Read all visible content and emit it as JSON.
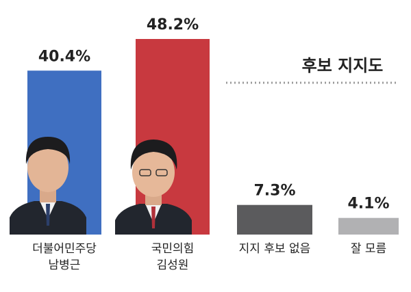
{
  "chart_data": {
    "type": "bar",
    "title": "후보 지지도",
    "categories": [
      [
        "더불어민주당",
        "남병근"
      ],
      [
        "국민의힘",
        "김성원"
      ],
      [
        "지지 후보 없음"
      ],
      [
        "잘 모름"
      ]
    ],
    "values": [
      40.4,
      48.2,
      7.3,
      4.1
    ],
    "value_labels": [
      "40.4%",
      "48.2%",
      "7.3%",
      "4.1%"
    ],
    "colors": [
      "#3f6fc1",
      "#c8393f",
      "#5b5b5d",
      "#b1b1b3"
    ]
  }
}
